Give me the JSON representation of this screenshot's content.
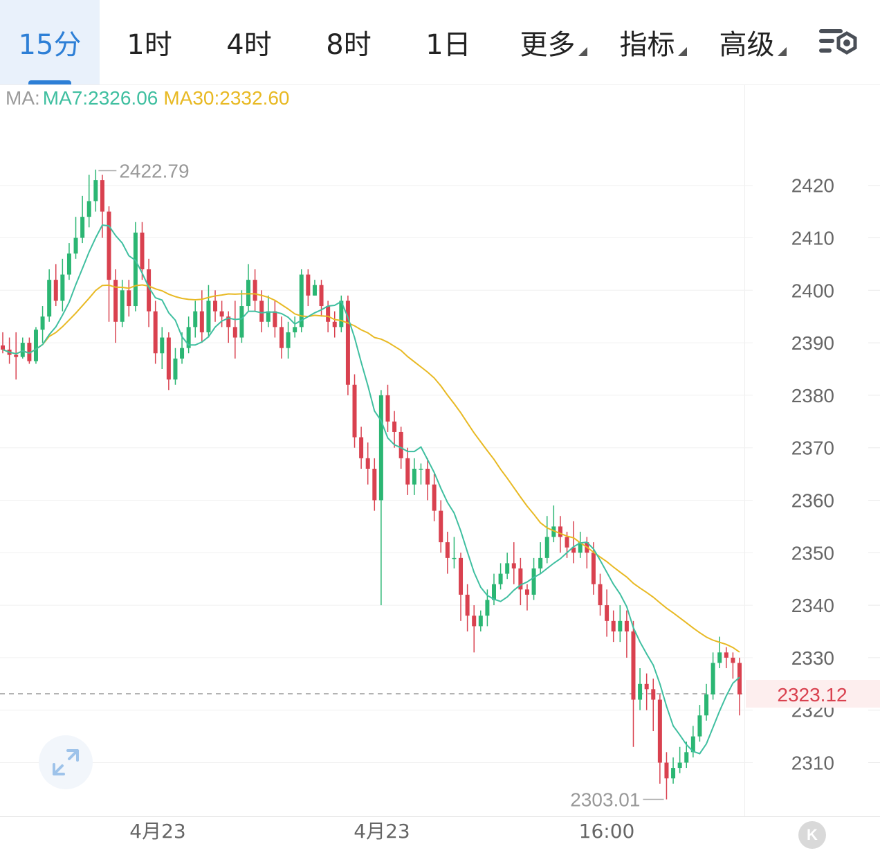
{
  "tabs": [
    {
      "label": "15分",
      "active": true
    },
    {
      "label": "1时"
    },
    {
      "label": "4时"
    },
    {
      "label": "8时"
    },
    {
      "label": "1日"
    },
    {
      "label": "更多",
      "dropdown": true
    },
    {
      "label": "指标",
      "dropdown": true
    },
    {
      "label": "高级",
      "dropdown": true
    }
  ],
  "icons": {
    "settings": "chart-settings-icon",
    "expand": "expand-icon",
    "k": "collapse-k-icon"
  },
  "legend": {
    "prefix": "MA:",
    "ma7": "MA7:2326.06",
    "ma30": "MA30:2332.60"
  },
  "colors": {
    "up": "#2bb673",
    "down": "#d9414f",
    "ma7": "#3fbfa0",
    "ma30": "#e8b923",
    "accent": "#2d7fd6"
  },
  "k_button": "K",
  "chart_data": {
    "type": "candlestick",
    "y_ticks": [
      2310,
      2320,
      2330,
      2340,
      2350,
      2360,
      2370,
      2380,
      2390,
      2400,
      2410,
      2420
    ],
    "ylim": [
      2302,
      2432
    ],
    "x_labels": [
      "4月23",
      "4月23",
      "16:00"
    ],
    "high_label": "2422.79",
    "low_label": "2303.01",
    "current_price": "2323.12",
    "candles": [
      [
        2389.5,
        2388.7,
        2392,
        2388
      ],
      [
        2388.7,
        2387.7,
        2391,
        2386
      ],
      [
        2387.7,
        2387.3,
        2392,
        2383
      ],
      [
        2387.3,
        2390,
        2391,
        2387
      ],
      [
        2390,
        2386.5,
        2391,
        2386
      ],
      [
        2386.5,
        2392.5,
        2393,
        2386
      ],
      [
        2392.5,
        2395,
        2397,
        2390
      ],
      [
        2395,
        2402,
        2404,
        2394
      ],
      [
        2402,
        2398,
        2405,
        2397
      ],
      [
        2398,
        2403,
        2406,
        2396
      ],
      [
        2403,
        2407,
        2409,
        2402
      ],
      [
        2407,
        2410,
        2414,
        2406
      ],
      [
        2410,
        2414,
        2418,
        2409
      ],
      [
        2414,
        2417,
        2422,
        2412
      ],
      [
        2417,
        2421,
        2423,
        2415
      ],
      [
        2421,
        2415,
        2422,
        2410
      ],
      [
        2415,
        2402,
        2416,
        2394
      ],
      [
        2402,
        2394,
        2404,
        2390
      ],
      [
        2394,
        2400,
        2402,
        2393
      ],
      [
        2400,
        2397,
        2402,
        2395
      ],
      [
        2397,
        2411,
        2413,
        2396
      ],
      [
        2411,
        2404,
        2413,
        2402
      ],
      [
        2404,
        2396,
        2406,
        2393
      ],
      [
        2396,
        2388,
        2398,
        2386
      ],
      [
        2388,
        2391,
        2393,
        2385
      ],
      [
        2391,
        2383,
        2392,
        2381
      ],
      [
        2383,
        2387,
        2389,
        2382
      ],
      [
        2387,
        2389,
        2392,
        2386
      ],
      [
        2389,
        2393,
        2395,
        2388
      ],
      [
        2393,
        2396,
        2398,
        2391
      ],
      [
        2396,
        2392,
        2400,
        2390
      ],
      [
        2392,
        2398,
        2401,
        2391
      ],
      [
        2398,
        2396,
        2400,
        2394
      ],
      [
        2396,
        2395,
        2398,
        2393
      ],
      [
        2395,
        2393,
        2396,
        2390
      ],
      [
        2393,
        2391,
        2398,
        2387
      ],
      [
        2391,
        2397,
        2400,
        2390
      ],
      [
        2397,
        2402,
        2405,
        2396
      ],
      [
        2402,
        2398,
        2404,
        2396
      ],
      [
        2398,
        2394,
        2400,
        2392
      ],
      [
        2394,
        2396,
        2399,
        2393
      ],
      [
        2396,
        2393,
        2398,
        2391
      ],
      [
        2393,
        2389,
        2395,
        2387
      ],
      [
        2389,
        2392,
        2394,
        2387
      ],
      [
        2392,
        2393,
        2395,
        2391
      ],
      [
        2393,
        2403,
        2404,
        2392
      ],
      [
        2403,
        2399,
        2404,
        2397
      ],
      [
        2399,
        2401,
        2402,
        2399
      ],
      [
        2401,
        2397,
        2402,
        2395
      ],
      [
        2397,
        2394,
        2398,
        2392
      ],
      [
        2394,
        2393,
        2396,
        2391
      ],
      [
        2393,
        2398,
        2399,
        2392
      ],
      [
        2398,
        2382,
        2399,
        2380
      ],
      [
        2382,
        2372,
        2384,
        2370
      ],
      [
        2372,
        2368,
        2374,
        2366
      ],
      [
        2368,
        2366,
        2371,
        2363
      ],
      [
        2366,
        2360,
        2368,
        2358
      ],
      [
        2360,
        2380,
        2381,
        2340
      ],
      [
        2380,
        2375,
        2382,
        2373
      ],
      [
        2375,
        2373,
        2377,
        2370
      ],
      [
        2373,
        2368,
        2374,
        2366
      ],
      [
        2368,
        2363,
        2370,
        2361
      ],
      [
        2363,
        2366,
        2368,
        2361
      ],
      [
        2366,
        2366,
        2367,
        2363
      ],
      [
        2366,
        2363,
        2368,
        2360
      ],
      [
        2363,
        2358,
        2365,
        2356
      ],
      [
        2358,
        2352,
        2360,
        2350
      ],
      [
        2352,
        2349,
        2354,
        2346
      ],
      [
        2349,
        2349,
        2353,
        2347
      ],
      [
        2349,
        2342,
        2350,
        2337
      ],
      [
        2342,
        2338,
        2344,
        2335
      ],
      [
        2338,
        2336,
        2340,
        2331
      ],
      [
        2336,
        2338,
        2339,
        2335
      ],
      [
        2338,
        2341,
        2343,
        2336
      ],
      [
        2341,
        2344,
        2346,
        2340
      ],
      [
        2344,
        2346,
        2348,
        2343
      ],
      [
        2346,
        2348,
        2350,
        2345
      ],
      [
        2348,
        2347,
        2352,
        2344
      ],
      [
        2347,
        2343,
        2349,
        2340
      ],
      [
        2343,
        2342,
        2344,
        2339
      ],
      [
        2342,
        2347,
        2349,
        2341
      ],
      [
        2347,
        2349,
        2352,
        2346
      ],
      [
        2349,
        2353,
        2357,
        2348
      ],
      [
        2353,
        2355,
        2359,
        2352
      ],
      [
        2355,
        2353,
        2357,
        2350
      ],
      [
        2353,
        2351,
        2354,
        2349
      ],
      [
        2351,
        2350,
        2356,
        2348
      ],
      [
        2350,
        2352,
        2354,
        2349
      ],
      [
        2352,
        2350,
        2353,
        2347
      ],
      [
        2350,
        2344,
        2352,
        2342
      ],
      [
        2344,
        2340,
        2346,
        2338
      ],
      [
        2340,
        2337,
        2343,
        2334
      ],
      [
        2337,
        2335,
        2339,
        2333
      ],
      [
        2335,
        2337,
        2340,
        2333
      ],
      [
        2337,
        2335,
        2339,
        2330
      ],
      [
        2335,
        2322,
        2337,
        2313
      ],
      [
        2322,
        2325,
        2328,
        2320
      ],
      [
        2325,
        2324,
        2327,
        2320
      ],
      [
        2324,
        2322,
        2326,
        2316
      ],
      [
        2322,
        2310,
        2323,
        2306
      ],
      [
        2310,
        2307,
        2312,
        2303
      ],
      [
        2307,
        2309,
        2311,
        2306
      ],
      [
        2309,
        2310,
        2313,
        2308
      ],
      [
        2310,
        2312,
        2314,
        2309
      ],
      [
        2312,
        2315,
        2317,
        2311
      ],
      [
        2315,
        2319,
        2321,
        2314
      ],
      [
        2319,
        2323,
        2325,
        2318
      ],
      [
        2323,
        2329,
        2331,
        2322
      ],
      [
        2329,
        2331,
        2334,
        2328
      ],
      [
        2331,
        2330,
        2332,
        2328
      ],
      [
        2330,
        2329,
        2331,
        2326
      ],
      [
        2329,
        2323,
        2330,
        2319
      ]
    ]
  }
}
